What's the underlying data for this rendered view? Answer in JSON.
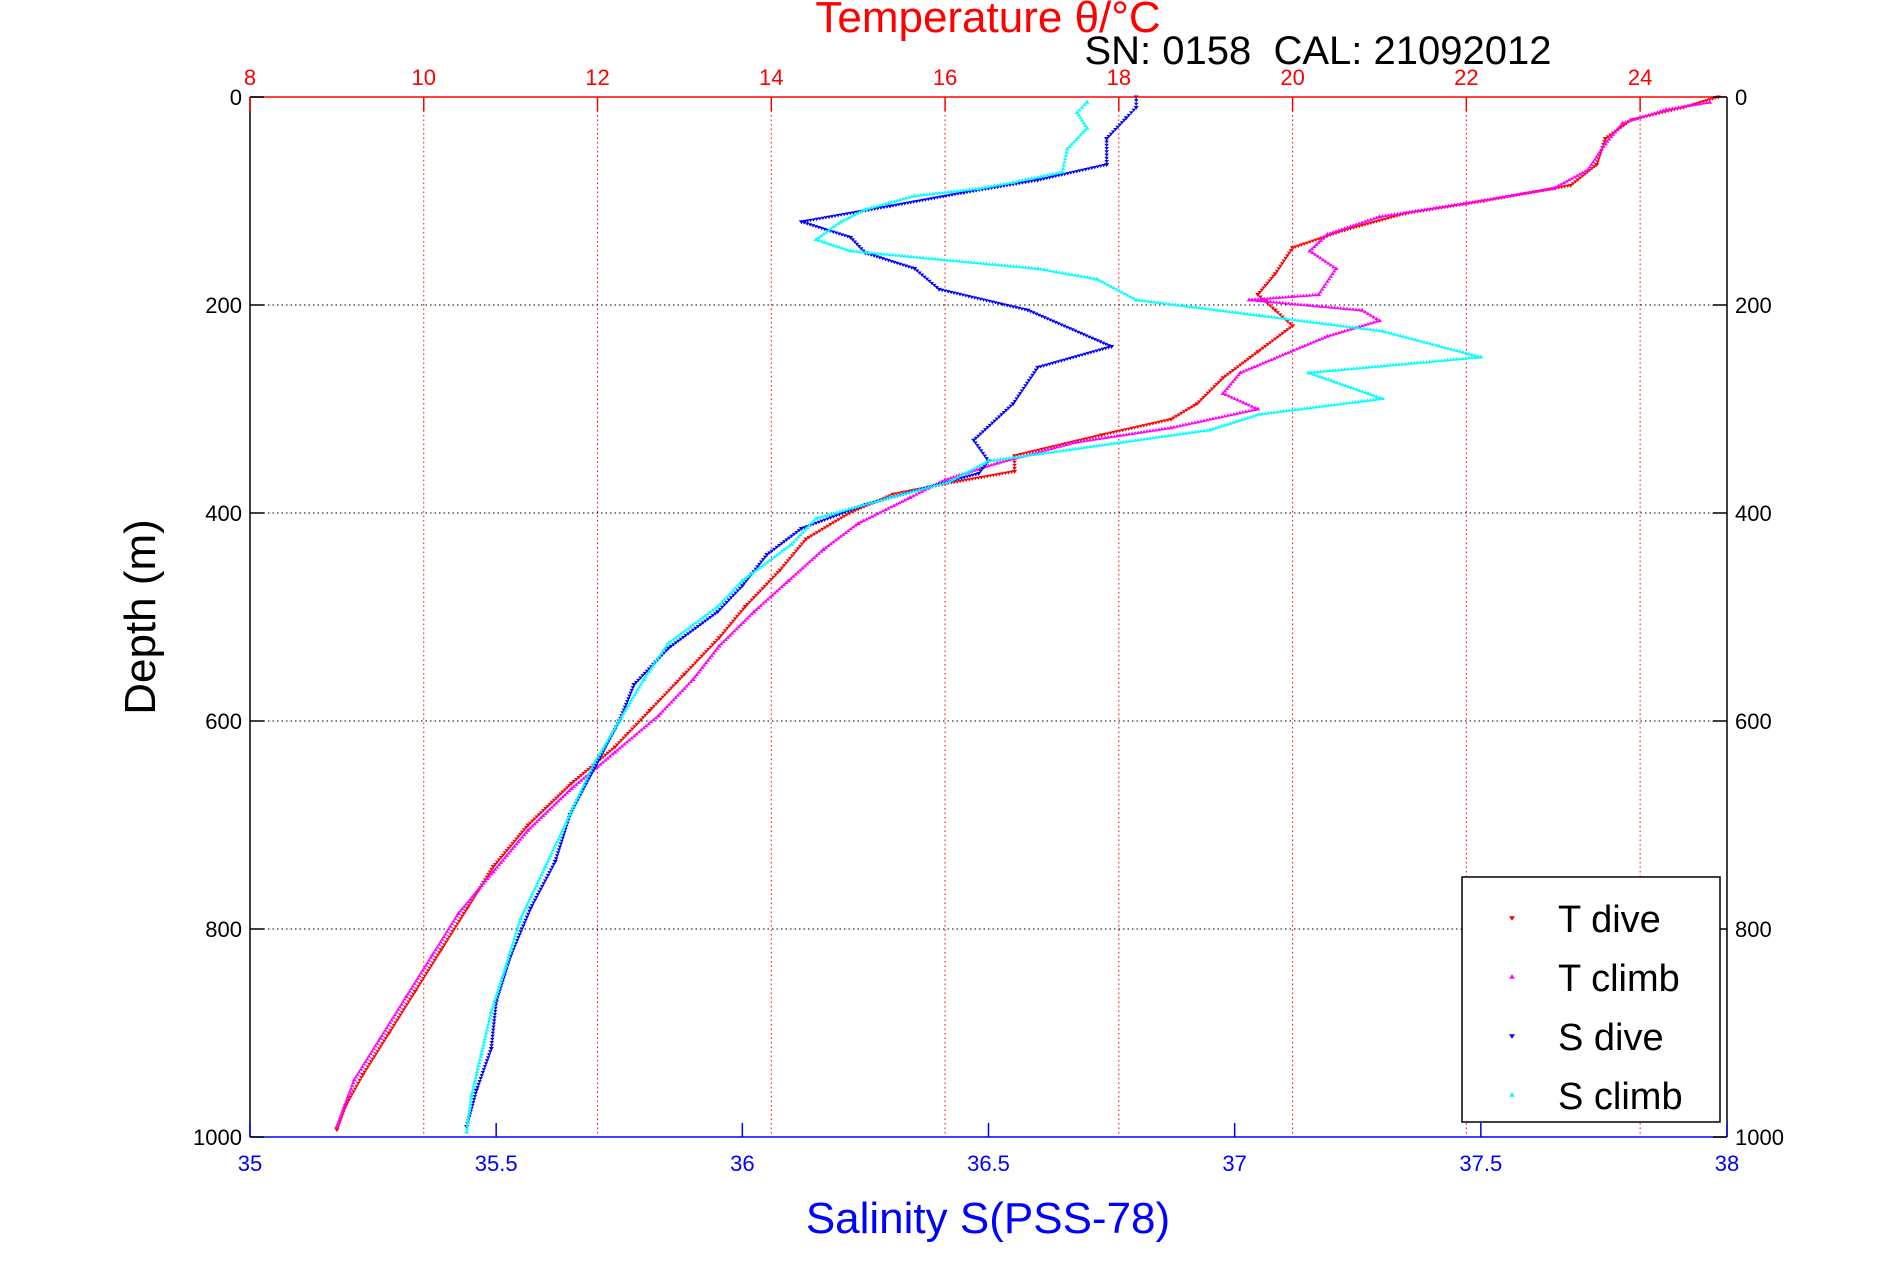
{
  "header": {
    "annotation": "SN: 0158  CAL: 21092012"
  },
  "chart_data": {
    "type": "scatter",
    "title": "Temperature θ/°C",
    "xlabel": "Salinity S(PSS-78)",
    "ylabel": "Depth (m)",
    "x_top": {
      "label": "Temperature θ/°C",
      "lim": [
        8,
        25
      ],
      "ticks": [
        8,
        10,
        12,
        14,
        16,
        18,
        20,
        22,
        24
      ],
      "tick_labels": [
        "8",
        "10",
        "12",
        "14",
        "16",
        "18",
        "20",
        "22",
        "24"
      ],
      "color": "#ff0000"
    },
    "x_bottom": {
      "label": "Salinity S(PSS-78)",
      "lim": [
        35,
        38
      ],
      "ticks": [
        35,
        35.5,
        36,
        36.5,
        37,
        37.5,
        38
      ],
      "tick_labels": [
        "35",
        "35.5",
        "36",
        "36.5",
        "37",
        "37.5",
        "38"
      ],
      "color": "#0000ff"
    },
    "y": {
      "lim": [
        0,
        1000
      ],
      "reversed": true,
      "ticks": [
        0,
        200,
        400,
        600,
        800,
        1000
      ],
      "tick_labels": [
        "0",
        "200",
        "400",
        "600",
        "800",
        "1000"
      ]
    },
    "grid": true,
    "legend": "bottom-right",
    "series": [
      {
        "name": "T dive",
        "axis": "temperature",
        "color": "#ff0000",
        "marker": "triangle-down",
        "points": [
          [
            24.9,
            0
          ],
          [
            24.5,
            10
          ],
          [
            23.9,
            22
          ],
          [
            23.6,
            40
          ],
          [
            23.5,
            65
          ],
          [
            23.2,
            85
          ],
          [
            22.2,
            100
          ],
          [
            21.3,
            112
          ],
          [
            20.6,
            128
          ],
          [
            20.0,
            145
          ],
          [
            19.8,
            170
          ],
          [
            19.6,
            190
          ],
          [
            19.8,
            205
          ],
          [
            20.0,
            220
          ],
          [
            19.6,
            245
          ],
          [
            19.2,
            270
          ],
          [
            18.9,
            295
          ],
          [
            18.6,
            310
          ],
          [
            17.8,
            325
          ],
          [
            16.8,
            345
          ],
          [
            16.8,
            360
          ],
          [
            16.0,
            372
          ],
          [
            15.4,
            382
          ],
          [
            14.9,
            400
          ],
          [
            14.4,
            425
          ],
          [
            14.1,
            455
          ],
          [
            13.7,
            490
          ],
          [
            13.4,
            520
          ],
          [
            13.0,
            555
          ],
          [
            12.6,
            590
          ],
          [
            12.2,
            625
          ],
          [
            11.7,
            660
          ],
          [
            11.2,
            700
          ],
          [
            10.8,
            740
          ],
          [
            10.5,
            780
          ],
          [
            10.2,
            820
          ],
          [
            9.9,
            860
          ],
          [
            9.6,
            900
          ],
          [
            9.3,
            940
          ],
          [
            9.1,
            970
          ],
          [
            9.0,
            993
          ]
        ]
      },
      {
        "name": "T climb",
        "axis": "temperature",
        "color": "#ff00ff",
        "marker": "triangle-up",
        "points": [
          [
            24.8,
            5
          ],
          [
            24.3,
            12
          ],
          [
            23.8,
            25
          ],
          [
            23.6,
            45
          ],
          [
            23.4,
            70
          ],
          [
            23.0,
            88
          ],
          [
            22.0,
            102
          ],
          [
            21.0,
            115
          ],
          [
            20.4,
            132
          ],
          [
            20.2,
            148
          ],
          [
            20.5,
            165
          ],
          [
            20.3,
            190
          ],
          [
            19.5,
            195
          ],
          [
            20.8,
            205
          ],
          [
            21.0,
            215
          ],
          [
            20.4,
            230
          ],
          [
            19.4,
            265
          ],
          [
            19.2,
            285
          ],
          [
            19.6,
            300
          ],
          [
            18.6,
            318
          ],
          [
            17.5,
            332
          ],
          [
            16.6,
            352
          ],
          [
            16.0,
            368
          ],
          [
            15.6,
            385
          ],
          [
            15.0,
            410
          ],
          [
            14.6,
            435
          ],
          [
            14.2,
            465
          ],
          [
            13.8,
            495
          ],
          [
            13.4,
            528
          ],
          [
            13.1,
            560
          ],
          [
            12.7,
            595
          ],
          [
            12.2,
            630
          ],
          [
            11.7,
            665
          ],
          [
            11.2,
            705
          ],
          [
            10.8,
            745
          ],
          [
            10.4,
            785
          ],
          [
            10.1,
            825
          ],
          [
            9.8,
            865
          ],
          [
            9.5,
            905
          ],
          [
            9.2,
            945
          ],
          [
            9.0,
            990
          ]
        ]
      },
      {
        "name": "S dive",
        "axis": "salinity",
        "color": "#0000ff",
        "marker": "triangle-down",
        "points": [
          [
            36.8,
            0
          ],
          [
            36.8,
            10
          ],
          [
            36.78,
            20
          ],
          [
            36.74,
            40
          ],
          [
            36.74,
            65
          ],
          [
            36.6,
            80
          ],
          [
            36.45,
            92
          ],
          [
            36.3,
            105
          ],
          [
            36.12,
            120
          ],
          [
            36.22,
            135
          ],
          [
            36.25,
            150
          ],
          [
            36.35,
            165
          ],
          [
            36.4,
            185
          ],
          [
            36.58,
            205
          ],
          [
            36.75,
            240
          ],
          [
            36.6,
            260
          ],
          [
            36.55,
            295
          ],
          [
            36.47,
            330
          ],
          [
            36.5,
            350
          ],
          [
            36.48,
            362
          ],
          [
            36.38,
            375
          ],
          [
            36.25,
            392
          ],
          [
            36.12,
            415
          ],
          [
            36.05,
            440
          ],
          [
            36.0,
            470
          ],
          [
            35.95,
            495
          ],
          [
            35.85,
            530
          ],
          [
            35.78,
            565
          ],
          [
            35.75,
            600
          ],
          [
            35.7,
            645
          ],
          [
            35.65,
            690
          ],
          [
            35.62,
            735
          ],
          [
            35.57,
            780
          ],
          [
            35.53,
            825
          ],
          [
            35.5,
            870
          ],
          [
            35.49,
            915
          ],
          [
            35.46,
            955
          ],
          [
            35.44,
            990
          ]
        ]
      },
      {
        "name": "S climb",
        "axis": "salinity",
        "color": "#00ffff",
        "marker": "triangle-up",
        "points": [
          [
            36.7,
            5
          ],
          [
            36.68,
            15
          ],
          [
            36.7,
            30
          ],
          [
            36.66,
            50
          ],
          [
            36.65,
            72
          ],
          [
            36.55,
            82
          ],
          [
            36.48,
            88
          ],
          [
            36.35,
            95
          ],
          [
            36.25,
            108
          ],
          [
            36.2,
            120
          ],
          [
            36.15,
            137
          ],
          [
            36.22,
            148
          ],
          [
            36.6,
            165
          ],
          [
            36.72,
            175
          ],
          [
            36.8,
            195
          ],
          [
            37.05,
            210
          ],
          [
            37.3,
            225
          ],
          [
            37.5,
            250
          ],
          [
            37.15,
            265
          ],
          [
            37.3,
            290
          ],
          [
            37.05,
            305
          ],
          [
            36.95,
            320
          ],
          [
            36.5,
            350
          ],
          [
            36.42,
            370
          ],
          [
            36.3,
            385
          ],
          [
            36.15,
            405
          ],
          [
            36.1,
            430
          ],
          [
            36.0,
            465
          ],
          [
            35.95,
            490
          ],
          [
            35.85,
            525
          ],
          [
            35.8,
            560
          ],
          [
            35.75,
            600
          ],
          [
            35.7,
            640
          ],
          [
            35.65,
            690
          ],
          [
            35.6,
            740
          ],
          [
            35.55,
            790
          ],
          [
            35.52,
            835
          ],
          [
            35.49,
            880
          ],
          [
            35.47,
            920
          ],
          [
            35.45,
            960
          ],
          [
            35.44,
            995
          ]
        ]
      }
    ]
  }
}
